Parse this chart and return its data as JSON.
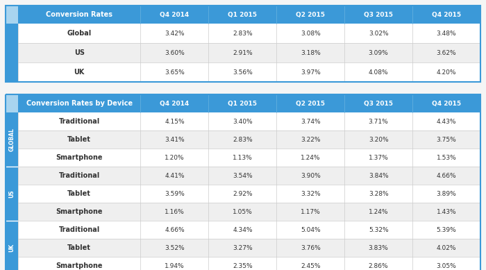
{
  "table1_header": [
    "Conversion Rates",
    "Q4 2014",
    "Q1 2015",
    "Q2 2015",
    "Q3 2015",
    "Q4 2015"
  ],
  "table1_rows": [
    [
      "Global",
      "3.42%",
      "2.83%",
      "3.08%",
      "3.02%",
      "3.48%"
    ],
    [
      "US",
      "3.60%",
      "2.91%",
      "3.18%",
      "3.09%",
      "3.62%"
    ],
    [
      "UK",
      "3.65%",
      "3.56%",
      "3.97%",
      "4.08%",
      "4.20%"
    ]
  ],
  "table2_header": [
    "Conversion Rates by Device",
    "Q4 2014",
    "Q1 2015",
    "Q2 2015",
    "Q3 2015",
    "Q4 2015"
  ],
  "table2_rows": [
    [
      "Traditional",
      "4.15%",
      "3.40%",
      "3.74%",
      "3.71%",
      "4.43%"
    ],
    [
      "Tablet",
      "3.41%",
      "2.83%",
      "3.22%",
      "3.20%",
      "3.75%"
    ],
    [
      "Smartphone",
      "1.20%",
      "1.13%",
      "1.24%",
      "1.37%",
      "1.53%"
    ],
    [
      "Traditional",
      "4.41%",
      "3.54%",
      "3.90%",
      "3.84%",
      "4.66%"
    ],
    [
      "Tablet",
      "3.59%",
      "2.92%",
      "3.32%",
      "3.28%",
      "3.89%"
    ],
    [
      "Smartphone",
      "1.16%",
      "1.05%",
      "1.17%",
      "1.24%",
      "1.43%"
    ],
    [
      "Traditional",
      "4.66%",
      "4.34%",
      "5.04%",
      "5.32%",
      "5.39%"
    ],
    [
      "Tablet",
      "3.52%",
      "3.27%",
      "3.76%",
      "3.83%",
      "4.02%"
    ],
    [
      "Smartphone",
      "1.94%",
      "2.35%",
      "2.45%",
      "2.86%",
      "3.05%"
    ]
  ],
  "table2_side_labels": [
    {
      "label": "GLOBAL",
      "rows": [
        0,
        1,
        2
      ]
    },
    {
      "label": "US",
      "rows": [
        3,
        4,
        5
      ]
    },
    {
      "label": "UK",
      "rows": [
        6,
        7,
        8
      ]
    }
  ],
  "header_bg_color": "#3B99D8",
  "header_text_color": "#FFFFFF",
  "row_bg_even": "#FFFFFF",
  "row_bg_odd": "#EFEFEF",
  "cell_text_color": "#333333",
  "side_label_bg": "#3B99D8",
  "side_label_light_bg": "#A8D4EF",
  "side_label_text_color": "#FFFFFF",
  "border_color": "#CCCCCC",
  "outer_border_color": "#3B99D8",
  "background_color": "#F5F5F5"
}
